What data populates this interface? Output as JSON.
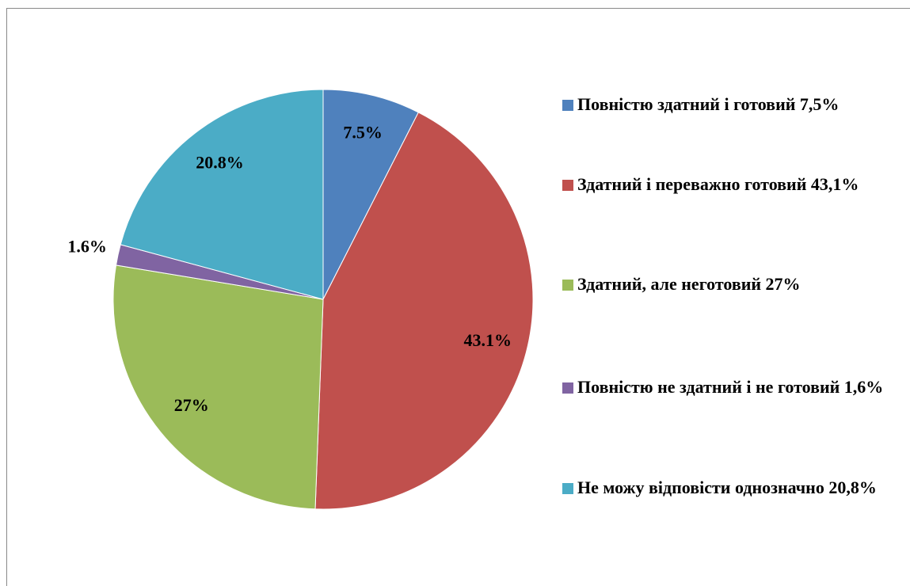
{
  "chart_data": {
    "type": "pie",
    "categories": [
      "Повністю здатний і готовий 7,5%",
      "Здатний і переважно готовий 43,1%",
      "Здатний, але неготовий 27%",
      "Повністю не здатний і не готовий 1,6%",
      "Не можу відповісти однозначно 20,8%"
    ],
    "values": [
      7.5,
      43.1,
      27,
      1.6,
      20.8
    ],
    "value_labels": [
      "7.5%",
      "43.1%",
      "27%",
      "1.6%",
      "20.8%"
    ],
    "colors": [
      "#4f81bd",
      "#c0504d",
      "#9bbb59",
      "#8064a2",
      "#4bacc6"
    ],
    "legend": "right"
  }
}
